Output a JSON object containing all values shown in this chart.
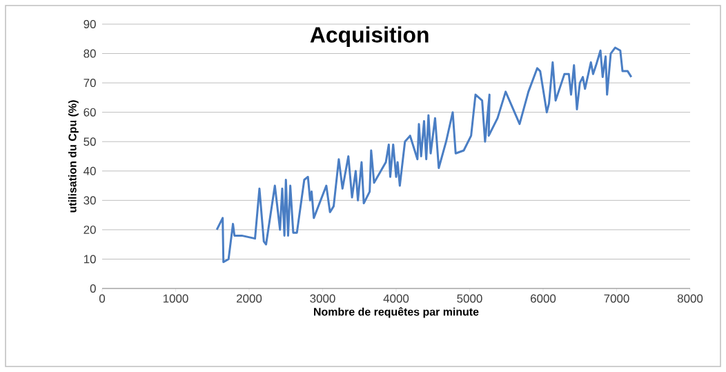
{
  "chart_data": {
    "type": "line",
    "title": "Acquisition",
    "xlabel": "Nombre de requêtes par minute",
    "ylabel": "utilisation du Cpu (%)",
    "x": [
      1560,
      1640,
      1650,
      1720,
      1780,
      1800,
      1900,
      2080,
      2140,
      2200,
      2230,
      2350,
      2420,
      2450,
      2480,
      2500,
      2530,
      2560,
      2600,
      2650,
      2750,
      2800,
      2830,
      2850,
      2880,
      3050,
      3100,
      3150,
      3220,
      3270,
      3350,
      3400,
      3450,
      3480,
      3530,
      3560,
      3640,
      3660,
      3700,
      3860,
      3900,
      3920,
      3960,
      4000,
      4020,
      4050,
      4120,
      4190,
      4290,
      4310,
      4340,
      4380,
      4410,
      4440,
      4470,
      4530,
      4580,
      4680,
      4770,
      4810,
      4920,
      5020,
      5080,
      5170,
      5210,
      5270,
      5260,
      5380,
      5490,
      5680,
      5800,
      5920,
      5960,
      6050,
      6080,
      6130,
      6170,
      6290,
      6350,
      6380,
      6420,
      6460,
      6500,
      6540,
      6570,
      6650,
      6680,
      6720,
      6780,
      6810,
      6850,
      6870,
      6920,
      6980,
      7050,
      7080,
      7150,
      7200
    ],
    "series": [
      {
        "color": "#4a7ec4",
        "values": [
          20,
          24,
          9,
          10,
          22,
          18,
          18,
          17,
          34,
          16,
          15,
          35,
          20,
          34,
          18,
          37,
          18,
          35,
          19,
          19,
          37,
          38,
          30,
          33,
          24,
          35,
          26,
          28,
          44,
          34,
          45,
          31,
          40,
          30,
          43,
          29,
          33,
          47,
          36,
          43,
          49,
          38,
          49,
          38,
          43,
          35,
          50,
          52,
          44,
          56,
          45,
          57,
          44,
          59,
          46,
          58,
          41,
          50,
          60,
          46,
          47,
          52,
          66,
          64,
          50,
          66,
          52,
          58,
          67,
          56,
          67,
          75,
          74,
          60,
          63,
          77,
          64,
          73,
          73,
          66,
          76,
          61,
          70,
          72,
          68,
          77,
          73,
          76,
          81,
          72,
          79,
          66,
          80,
          82,
          81,
          74,
          74,
          72
        ]
      }
    ],
    "xlim": [
      0,
      8000
    ],
    "xticks": [
      0,
      1000,
      2000,
      3000,
      4000,
      5000,
      6000,
      7000,
      8000
    ],
    "ylim": [
      0,
      90
    ],
    "yticks": [
      0,
      10,
      20,
      30,
      40,
      50,
      60,
      70,
      80,
      90
    ],
    "grid": "y",
    "marker": "none",
    "line_style": "solid"
  }
}
